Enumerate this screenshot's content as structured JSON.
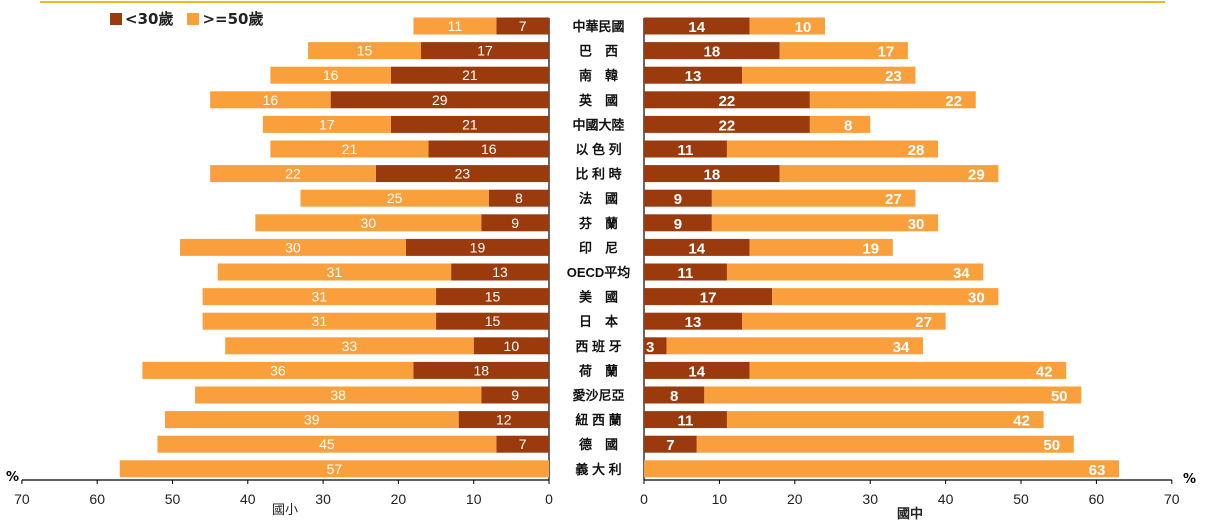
{
  "legend": {
    "young_label": "<30歲",
    "old_label": ">=50歲"
  },
  "unit_left": "%",
  "unit_right": "%",
  "left_title": "國小",
  "right_title": "國中",
  "colors": {
    "young": "#9b3b0d",
    "old": "#f9a03c",
    "top_accent": "#f5b520",
    "axis": "#000000"
  },
  "chart_data": {
    "type": "bar",
    "orientation": "horizontal-butterfly",
    "categories": [
      "中華民國",
      "巴　西",
      "南　韓",
      "英　國",
      "中國大陸",
      "以 色 列",
      "比 利 時",
      "法　國",
      "芬　蘭",
      "印　尼",
      "OECD平均",
      "美　國",
      "日　本",
      "西 班 牙",
      "荷　蘭",
      "愛沙尼亞",
      "紐 西 蘭",
      "德　國",
      "義 大 利"
    ],
    "left_panel": {
      "title": "國小",
      "xlim": [
        0,
        70
      ],
      "ticks": [
        0,
        10,
        20,
        30,
        40,
        50,
        60,
        70
      ],
      "series": [
        {
          "name": "<30歲",
          "values": [
            7,
            17,
            21,
            29,
            21,
            16,
            23,
            8,
            9,
            19,
            13,
            15,
            15,
            10,
            18,
            9,
            12,
            7,
            null
          ]
        },
        {
          "name": ">=50歲",
          "values": [
            11,
            15,
            16,
            16,
            17,
            21,
            22,
            25,
            30,
            30,
            31,
            31,
            31,
            33,
            36,
            38,
            39,
            45,
            57
          ]
        }
      ]
    },
    "right_panel": {
      "title": "國中",
      "xlim": [
        0,
        70
      ],
      "ticks": [
        0,
        10,
        20,
        30,
        40,
        50,
        60,
        70
      ],
      "series": [
        {
          "name": "<30歲",
          "values": [
            14,
            18,
            13,
            22,
            22,
            11,
            18,
            9,
            9,
            14,
            11,
            17,
            13,
            3,
            14,
            8,
            11,
            7,
            null
          ]
        },
        {
          "name": ">=50歲",
          "values": [
            10,
            17,
            23,
            22,
            8,
            28,
            29,
            27,
            30,
            19,
            34,
            30,
            27,
            34,
            42,
            50,
            42,
            50,
            63
          ]
        }
      ]
    }
  }
}
